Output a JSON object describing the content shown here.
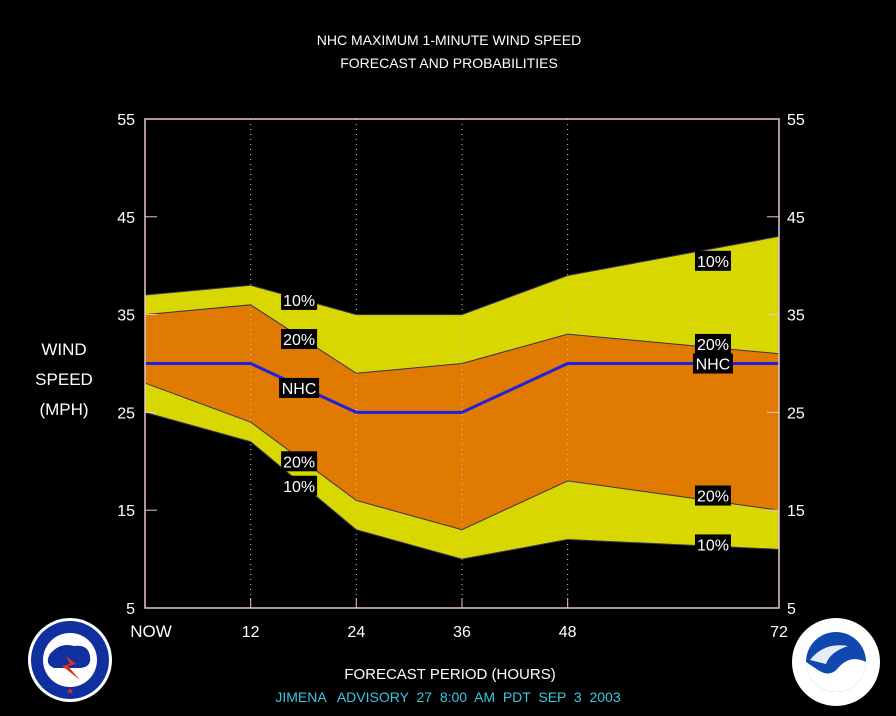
{
  "chart_data": {
    "type": "area",
    "title": "NHC MAXIMUM 1-MINUTE WIND SPEED",
    "subtitle": "FORECAST AND PROBABILITIES",
    "ylabel_lines": [
      "WIND",
      "SPEED",
      "(MPH)"
    ],
    "xlabel": "FORECAST PERIOD (HOURS)",
    "footer": "JIMENA   ADVISORY  27  8:00  AM  PDT  SEP  3  2003",
    "x": [
      0,
      12,
      24,
      36,
      48,
      72
    ],
    "x_tick_labels": [
      "NOW",
      "12",
      "24",
      "36",
      "48",
      "72"
    ],
    "y_ticks": [
      5,
      15,
      25,
      35,
      45,
      55
    ],
    "xlim": [
      0,
      72
    ],
    "ylim": [
      5,
      55
    ],
    "series": [
      {
        "name": "10%",
        "role": "upper-outer",
        "values": [
          37,
          38,
          35,
          35,
          39,
          43
        ]
      },
      {
        "name": "20%",
        "role": "upper-inner",
        "values": [
          35,
          36,
          29,
          30,
          33,
          31
        ]
      },
      {
        "name": "NHC",
        "role": "forecast",
        "values": [
          30,
          30,
          25,
          25,
          30,
          30
        ]
      },
      {
        "name": "20%",
        "role": "lower-inner",
        "values": [
          28,
          24,
          16,
          13,
          18,
          15
        ]
      },
      {
        "name": "10%",
        "role": "lower-outer",
        "values": [
          25,
          22,
          13,
          10,
          12,
          11
        ]
      }
    ],
    "annotations": [
      {
        "text": "10%",
        "x": 17.5,
        "y": 36.5
      },
      {
        "text": "20%",
        "x": 17.5,
        "y": 32.5
      },
      {
        "text": "NHC",
        "x": 17.5,
        "y": 27.5
      },
      {
        "text": "20%",
        "x": 17.5,
        "y": 20
      },
      {
        "text": "10%",
        "x": 17.5,
        "y": 17.5
      },
      {
        "text": "10%",
        "x": 64.5,
        "y": 40.5
      },
      {
        "text": "20%",
        "x": 64.5,
        "y": 32
      },
      {
        "text": "NHC",
        "x": 64.5,
        "y": 30
      },
      {
        "text": "20%",
        "x": 64.5,
        "y": 16.5
      },
      {
        "text": "10%",
        "x": 64.5,
        "y": 11.5
      }
    ],
    "colors": {
      "outer_band": "#d8d800",
      "inner_band": "#e07a00",
      "forecast_line": "#2020e0",
      "frame": "#e8c8c8",
      "grid": "#cccccc",
      "text": "#ffffff",
      "footer_text": "#38c8e0"
    },
    "grid": "vertical-dotted"
  },
  "logos": {
    "left_icon": "nws-logo-icon",
    "right_icon": "noaa-logo-icon"
  }
}
